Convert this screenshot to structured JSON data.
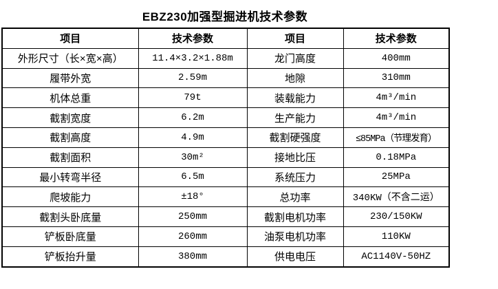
{
  "page": {
    "background": "#ffffff",
    "text_color": "#000000",
    "border_color": "#000000"
  },
  "title": "EBZ230加强型掘进机技术参数",
  "table": {
    "headers": [
      "项目",
      "技术参数",
      "项目",
      "技术参数"
    ],
    "rows": [
      [
        "外形尺寸（长×宽×高）",
        "11.4×3.2×1.88m",
        "龙门高度",
        "400mm"
      ],
      [
        "履带外宽",
        "2.59m",
        "地隙",
        "310mm"
      ],
      [
        "机体总重",
        "79t",
        "装载能力",
        "4m³/min"
      ],
      [
        "截割宽度",
        "6.2m",
        "生产能力",
        "4m³/min"
      ],
      [
        "截割高度",
        "4.9m",
        "截割硬强度",
        "≤85MPa（节理发育）"
      ],
      [
        "截割面积",
        "30m²",
        "接地比压",
        "0.18MPa"
      ],
      [
        "最小转弯半径",
        "6.5m",
        "系统压力",
        "25MPa"
      ],
      [
        "爬坡能力",
        "±18°",
        "总功率",
        "340KW（不含二运）"
      ],
      [
        "截割头卧底量",
        "250mm",
        "截割电机功率",
        "230/150KW"
      ],
      [
        "铲板卧底量",
        "260mm",
        "油泵电机功率",
        "110KW"
      ],
      [
        "铲板抬升量",
        "380mm",
        "供电电压",
        "AC1140V-50HZ"
      ]
    ]
  }
}
